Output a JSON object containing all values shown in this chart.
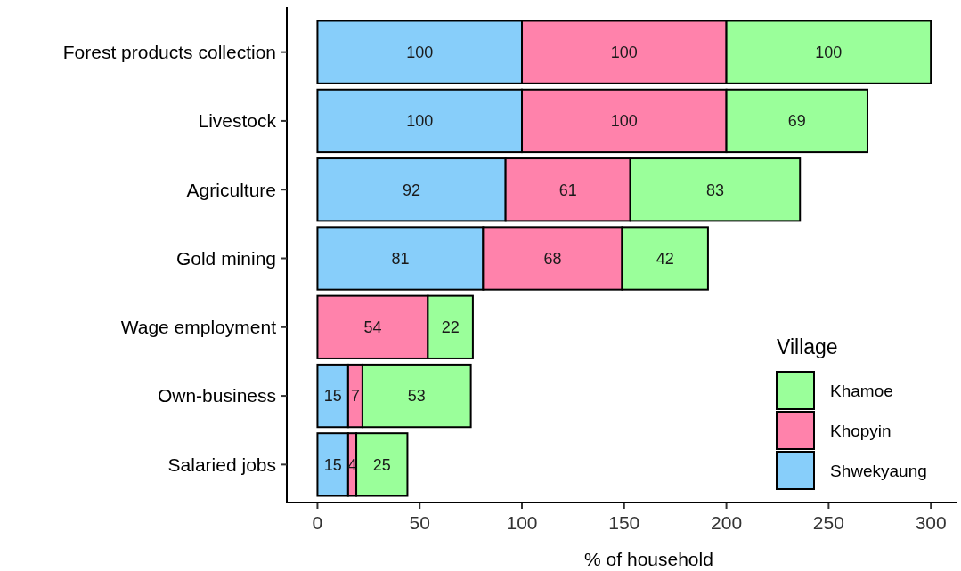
{
  "chart_data": {
    "type": "bar",
    "orientation": "horizontal",
    "stacked": true,
    "xlabel": "% of household",
    "legend_title": "Village",
    "legend": "bottom right",
    "grid": false,
    "categories": [
      "Forest products collection",
      "Livestock",
      "Agriculture",
      "Gold mining",
      "Wage employment",
      "Own-business",
      "Salaried jobs"
    ],
    "series": [
      {
        "name": "Shwekyaung",
        "color": "#87cefa",
        "values": [
          100,
          100,
          92,
          81,
          0,
          15,
          15
        ],
        "value_labels": [
          "100",
          "100",
          "92",
          "81",
          null,
          "15",
          "15"
        ]
      },
      {
        "name": "Khopyin",
        "color": "#ff82ab",
        "values": [
          100,
          100,
          61,
          68,
          54,
          7,
          4
        ],
        "value_labels": [
          "100",
          "100",
          "61",
          "68",
          "54",
          "7",
          "4"
        ]
      },
      {
        "name": "Khamoe",
        "color": "#9aff9a",
        "values": [
          100,
          69,
          83,
          42,
          22,
          53,
          25
        ],
        "value_labels": [
          "100",
          "69",
          "83",
          "42",
          "22",
          "53",
          "25"
        ]
      }
    ],
    "xlim": [
      -15,
      313
    ],
    "xticks": [
      0,
      50,
      100,
      150,
      200,
      250,
      300
    ]
  }
}
